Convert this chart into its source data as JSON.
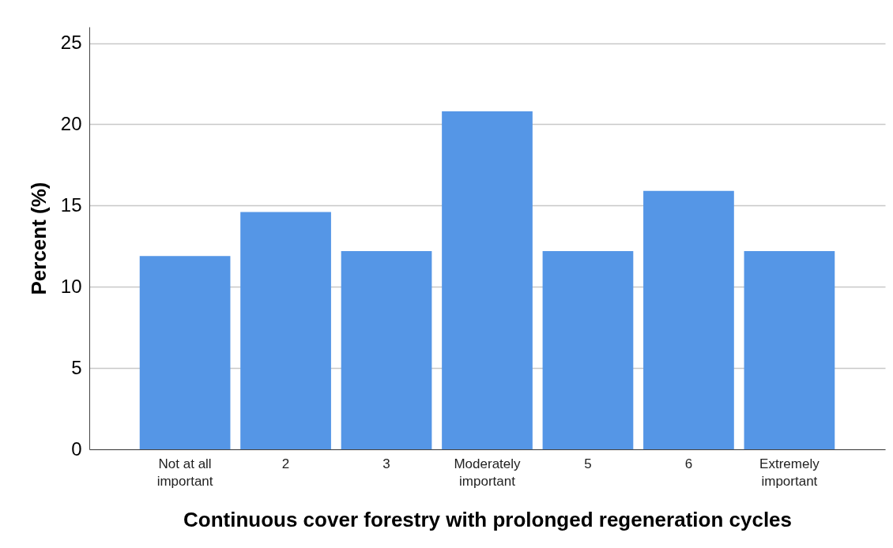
{
  "chart_data": {
    "type": "bar",
    "xlabel": "Continuous cover forestry with prolonged regeneration cycles",
    "ylabel": "Percent (%)",
    "categories": [
      "Not at all important",
      "2",
      "3",
      "Moderately important",
      "5",
      "6",
      "Extremely important"
    ],
    "values": [
      11.9,
      14.6,
      12.2,
      20.8,
      12.2,
      15.9,
      12.2
    ],
    "color": "#5596e6",
    "ylim": [
      0,
      26
    ],
    "yticks": [
      0,
      5,
      10,
      15,
      20,
      25
    ],
    "grid": "y"
  }
}
